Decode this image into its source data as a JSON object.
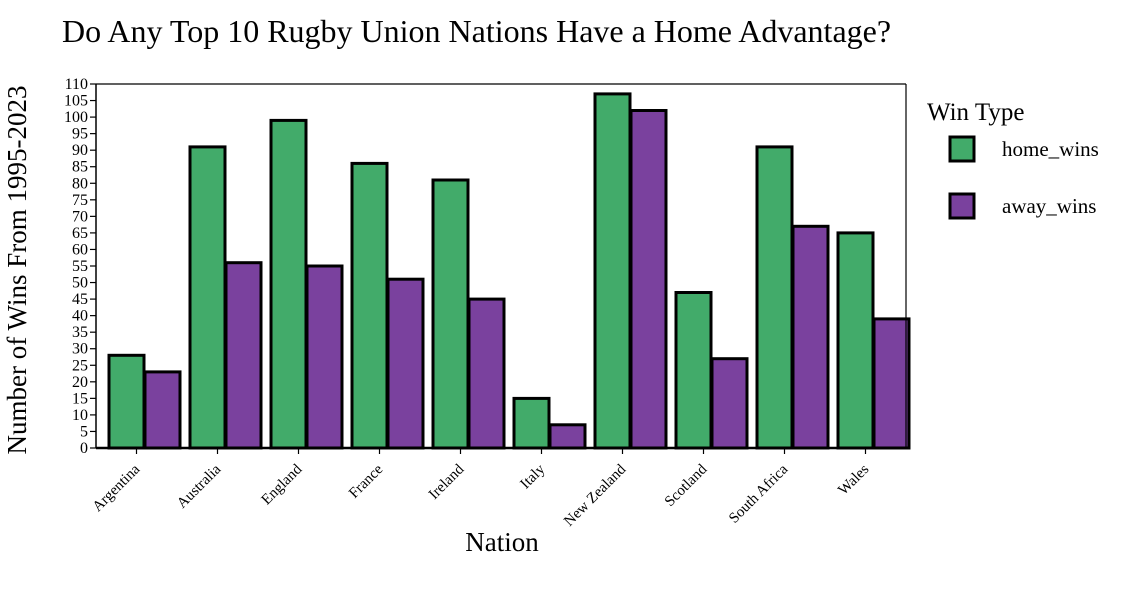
{
  "chart_data": {
    "type": "bar",
    "title": "Do Any Top 10 Rugby Union Nations Have a Home Advantage?",
    "xlabel": "Nation",
    "ylabel": "Number of Wins From 1995-2023",
    "categories": [
      "Argentina",
      "Australia",
      "England",
      "France",
      "Ireland",
      "Italy",
      "New Zealand",
      "Scotland",
      "South Africa",
      "Wales"
    ],
    "series": [
      {
        "name": "home_wins",
        "color": "#42ab6a",
        "values": [
          28,
          91,
          99,
          86,
          81,
          15,
          107,
          47,
          91,
          65
        ]
      },
      {
        "name": "away_wins",
        "color": "#7a419e",
        "values": [
          23,
          56,
          55,
          51,
          45,
          7,
          102,
          27,
          67,
          39
        ]
      }
    ],
    "ylim": [
      0,
      110
    ],
    "yticks": [
      0,
      5,
      10,
      15,
      20,
      25,
      30,
      35,
      40,
      45,
      50,
      55,
      60,
      65,
      70,
      75,
      80,
      85,
      90,
      95,
      100,
      105,
      110
    ],
    "legend": {
      "title": "Win Type",
      "position": "right"
    },
    "grid": false
  }
}
